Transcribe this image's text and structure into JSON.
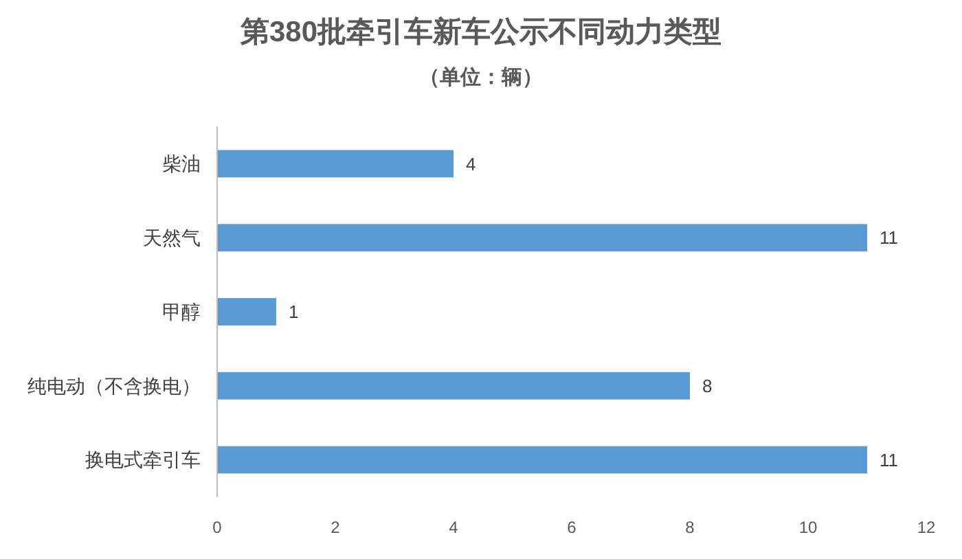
{
  "chart_data": {
    "type": "bar",
    "title": "第380批牵引车新车公示不同动力类型",
    "subtitle": "（单位：辆）",
    "orientation": "horizontal",
    "categories": [
      "柴油",
      "天然气",
      "甲醇",
      "纯电动（不含换电）",
      "换电式牵引车"
    ],
    "values": [
      4,
      11,
      1,
      8,
      11
    ],
    "color": "#5b9bd5",
    "data_labels": true,
    "xlim": [
      0,
      12
    ],
    "xticks": [
      0,
      2,
      4,
      6,
      8,
      10,
      12
    ],
    "grid": false
  }
}
